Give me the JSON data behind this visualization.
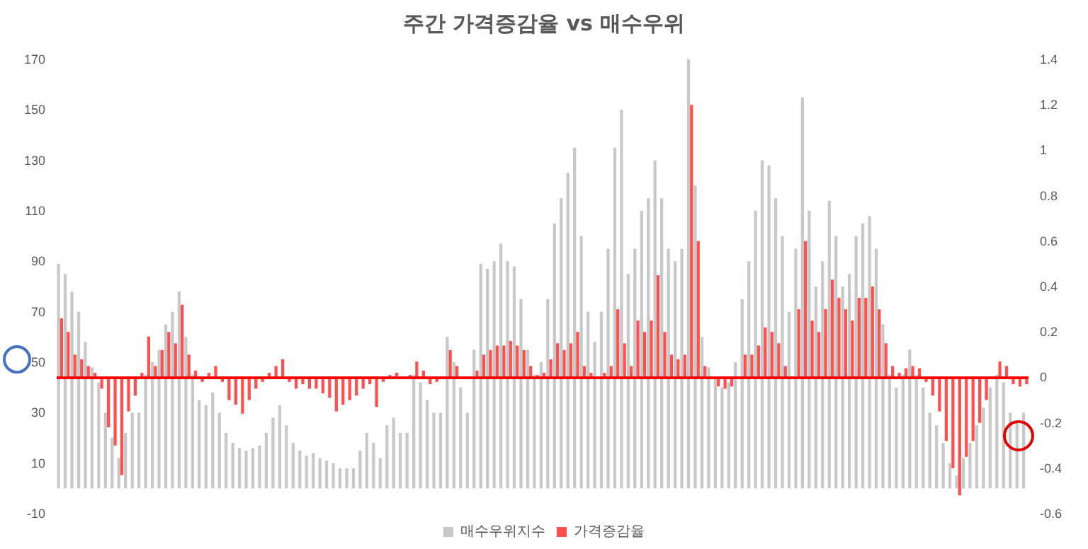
{
  "chart_data": {
    "type": "bar",
    "title": "주간 가격증감율 vs 매수우위",
    "categories": [
      null,
      null,
      null,
      null,
      null,
      null,
      null,
      null,
      null,
      null,
      null,
      null,
      null,
      null,
      null,
      null,
      null,
      null,
      null,
      null,
      null,
      null,
      null,
      null,
      null,
      null,
      null,
      null,
      null,
      null,
      null,
      null,
      null,
      null,
      null,
      null,
      null,
      null,
      null,
      null,
      null,
      null,
      null,
      null,
      null,
      null,
      null,
      null,
      null,
      null,
      null,
      null,
      null,
      null,
      null,
      null,
      null,
      null,
      null,
      null,
      null,
      null,
      null,
      null,
      null,
      null,
      null,
      null,
      null,
      null,
      null,
      null,
      null,
      null,
      null,
      null,
      null,
      null,
      null,
      null,
      null,
      null,
      null,
      null,
      null,
      null,
      null,
      null,
      null,
      null,
      null,
      null,
      null,
      null,
      null,
      null,
      null,
      null,
      null,
      null,
      null,
      null,
      null,
      null,
      null,
      null,
      null,
      null,
      null,
      null,
      null,
      null,
      null,
      null,
      null,
      null,
      null,
      null,
      null,
      null,
      null,
      null,
      null,
      null,
      null,
      null,
      null,
      null,
      null,
      null,
      null,
      null,
      null,
      null,
      null,
      null,
      null,
      null,
      null,
      null,
      null,
      null,
      null,
      null,
      null
    ],
    "series": [
      {
        "name": "매수우위지수",
        "color": "#c8c8c8",
        "values": [
          89,
          85,
          78,
          70,
          58,
          48,
          42,
          30,
          20,
          12,
          22,
          30,
          30,
          45,
          50,
          55,
          65,
          70,
          78,
          60,
          45,
          35,
          33,
          38,
          30,
          22,
          18,
          16,
          15,
          16,
          17,
          22,
          28,
          33,
          25,
          18,
          15,
          13,
          14,
          12,
          11,
          10,
          8,
          8,
          8,
          15,
          22,
          18,
          12,
          25,
          28,
          22,
          22,
          45,
          42,
          35,
          30,
          30,
          60,
          50,
          40,
          30,
          55,
          89,
          87,
          90,
          97,
          90,
          88,
          75,
          55,
          45,
          50,
          75,
          105,
          115,
          125,
          135,
          100,
          70,
          58,
          70,
          95,
          135,
          150,
          85,
          95,
          110,
          115,
          130,
          115,
          95,
          90,
          95,
          170,
          120,
          60,
          48,
          44,
          40,
          42,
          50,
          75,
          90,
          110,
          130,
          128,
          115,
          100,
          70,
          95,
          155,
          110,
          80,
          90,
          114,
          100,
          80,
          85,
          100,
          105,
          108,
          95,
          65,
          45,
          40,
          45,
          55,
          45,
          40,
          30,
          25,
          18,
          10,
          5,
          12,
          18,
          25,
          32,
          40,
          45,
          42,
          30,
          26,
          30
        ]
      },
      {
        "name": "가격증감율",
        "color": "#ff5050",
        "axis": "y2",
        "values": [
          0.26,
          0.2,
          0.1,
          0.08,
          0.05,
          0.02,
          -0.05,
          -0.22,
          -0.3,
          -0.43,
          -0.15,
          -0.08,
          0.02,
          0.18,
          0.05,
          0.12,
          0.2,
          0.15,
          0.32,
          0.1,
          0.03,
          -0.02,
          0.02,
          0.05,
          -0.02,
          -0.1,
          -0.12,
          -0.16,
          -0.1,
          -0.05,
          -0.02,
          0.02,
          0.05,
          0.08,
          -0.02,
          -0.05,
          -0.03,
          -0.05,
          -0.05,
          -0.07,
          -0.09,
          -0.15,
          -0.12,
          -0.1,
          -0.08,
          -0.05,
          -0.03,
          -0.13,
          -0.02,
          0.01,
          0.02,
          0,
          0.01,
          0.07,
          0.03,
          -0.03,
          -0.02,
          0,
          0.12,
          0.05,
          0,
          0,
          0.03,
          0.1,
          0.12,
          0.14,
          0.14,
          0.16,
          0.14,
          0.12,
          0.05,
          0.01,
          0.02,
          0.08,
          0.15,
          0.12,
          0.15,
          0.2,
          0.05,
          0.02,
          0,
          0.02,
          0.05,
          0.3,
          0.15,
          0.05,
          0.25,
          0.2,
          0.25,
          0.45,
          0.2,
          0.1,
          0.08,
          0.1,
          1.2,
          0.6,
          0.05,
          0,
          -0.04,
          -0.05,
          -0.04,
          0,
          0.1,
          0.1,
          0.14,
          0.22,
          0.2,
          0.15,
          0.05,
          0,
          0.3,
          0.6,
          0.25,
          0.2,
          0.3,
          0.43,
          0.35,
          0.3,
          0.25,
          0.35,
          0.35,
          0.4,
          0.3,
          0.15,
          0.05,
          0.02,
          0.04,
          0.05,
          0.04,
          -0.02,
          -0.08,
          -0.15,
          -0.28,
          -0.4,
          -0.52,
          -0.35,
          -0.28,
          -0.2,
          -0.1,
          0,
          0.07,
          0.05,
          -0.03,
          -0.04,
          -0.03
        ]
      }
    ],
    "ylim": [
      -10,
      170
    ],
    "yticks": [
      -10,
      10,
      30,
      50,
      70,
      90,
      110,
      130,
      150,
      170
    ],
    "y2lim": [
      -0.6,
      1.4
    ],
    "y2ticks": [
      -0.6,
      -0.4,
      -0.2,
      0,
      0.2,
      0.4,
      0.6,
      0.8,
      1,
      1.2,
      1.4
    ],
    "ref_lines": [
      {
        "axis": "y2",
        "value": 0,
        "color": "#ff0000"
      }
    ],
    "legend": "bottom",
    "grid": false
  }
}
